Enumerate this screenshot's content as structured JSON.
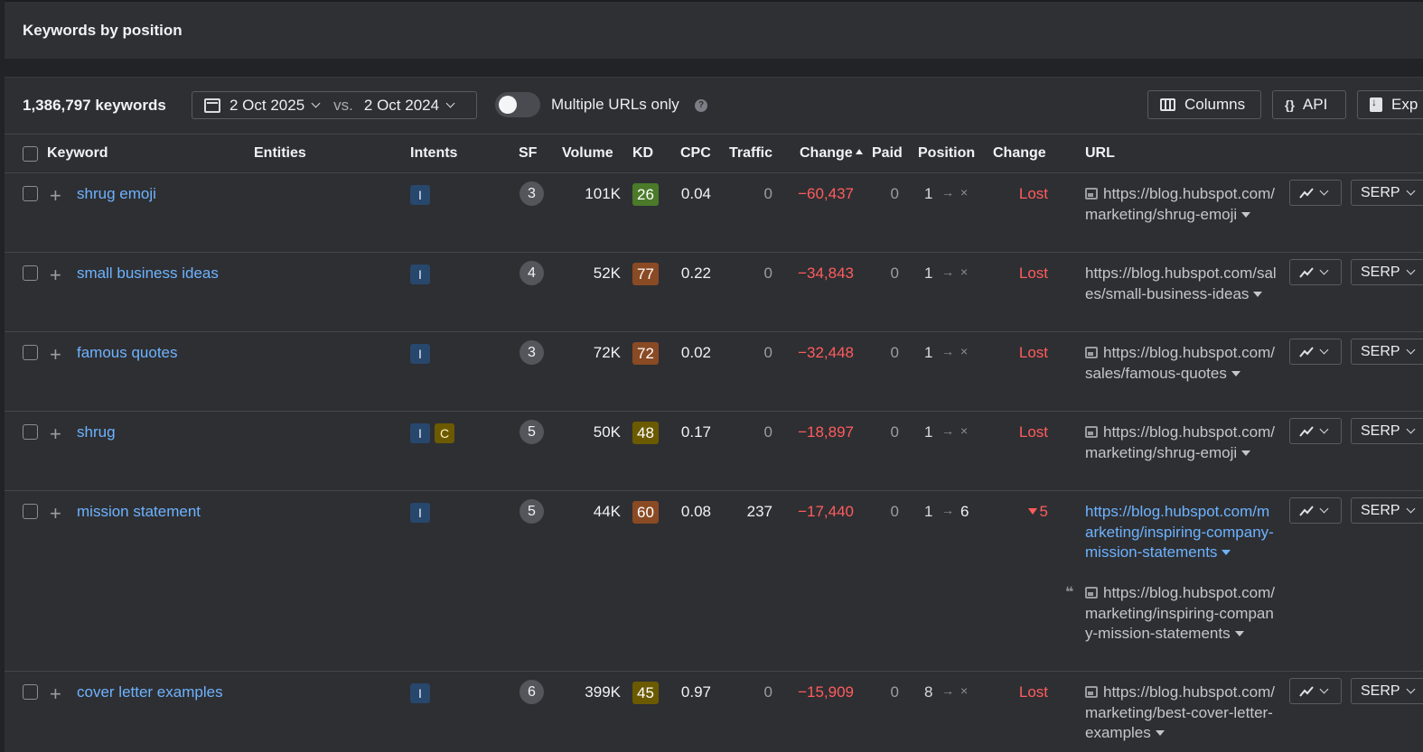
{
  "header": {
    "title": "Keywords by position"
  },
  "toolbar": {
    "keyword_count": "1,386,797 keywords",
    "date_current": "2 Oct 2025",
    "vs_label": "vs.",
    "date_compare": "2 Oct 2024",
    "toggle_label": "Multiple URLs only",
    "toggle_on": false,
    "help_glyph": "?",
    "columns_label": "Columns",
    "api_label": "API",
    "api_icon": "{}",
    "export_label": "Exp"
  },
  "columns": {
    "keyword": "Keyword",
    "entities": "Entities",
    "intents": "Intents",
    "sf": "SF",
    "volume": "Volume",
    "kd": "KD",
    "cpc": "CPC",
    "traffic": "Traffic",
    "change": "Change",
    "paid": "Paid",
    "position": "Position",
    "position_change": "Change",
    "url": "URL"
  },
  "serp_label": "SERP",
  "rows": [
    {
      "keyword": "shrug emoji",
      "intents": [
        "I"
      ],
      "sf": "3",
      "volume": "101K",
      "kd": "26",
      "kd_color": "#4a7a2a",
      "cpc": "0.04",
      "traffic": "0",
      "change": "−60,437",
      "paid": "0",
      "pos_from": "1",
      "pos_arrow": "→",
      "pos_to": "×",
      "pos_change": "Lost",
      "url": "https://blog.hubspot.com/marketing/shrug-emoji"
    },
    {
      "keyword": "small business ideas",
      "intents": [
        "I"
      ],
      "sf": "4",
      "volume": "52K",
      "kd": "77",
      "kd_color": "#8a4a24",
      "cpc": "0.22",
      "traffic": "0",
      "change": "−34,843",
      "paid": "0",
      "pos_from": "1",
      "pos_arrow": "→",
      "pos_to": "×",
      "pos_change": "Lost",
      "url": "https://blog.hubspot.com/sales/small-business-ideas"
    },
    {
      "keyword": "famous quotes",
      "intents": [
        "I"
      ],
      "sf": "3",
      "volume": "72K",
      "kd": "72",
      "kd_color": "#8a4a24",
      "cpc": "0.02",
      "traffic": "0",
      "change": "−32,448",
      "paid": "0",
      "pos_from": "1",
      "pos_arrow": "→",
      "pos_to": "×",
      "pos_change": "Lost",
      "url": "https://blog.hubspot.com/sales/famous-quotes"
    },
    {
      "keyword": "shrug",
      "intents": [
        "I",
        "C"
      ],
      "sf": "5",
      "volume": "50K",
      "kd": "48",
      "kd_color": "#6b5a00",
      "cpc": "0.17",
      "traffic": "0",
      "change": "−18,897",
      "paid": "0",
      "pos_from": "1",
      "pos_arrow": "→",
      "pos_to": "×",
      "pos_change": "Lost",
      "url": "https://blog.hubspot.com/marketing/shrug-emoji"
    },
    {
      "keyword": "mission statement",
      "intents": [
        "I"
      ],
      "sf": "5",
      "volume": "44K",
      "kd": "60",
      "kd_color": "#8a4a24",
      "cpc": "0.08",
      "traffic": "237",
      "change": "−17,440",
      "paid": "0",
      "pos_from": "1",
      "pos_arrow": "→",
      "pos_to": "6",
      "pos_change": "5",
      "url": "https://blog.hubspot.com/marketing/inspiring-company-mission-statements",
      "url2": "https://blog.hubspot.com/marketing/inspiring-company-mission-statements"
    },
    {
      "keyword": "cover letter examples",
      "intents": [
        "I"
      ],
      "sf": "6",
      "volume": "399K",
      "kd": "45",
      "kd_color": "#6b5a00",
      "cpc": "0.97",
      "traffic": "0",
      "change": "−15,909",
      "paid": "0",
      "pos_from": "8",
      "pos_arrow": "→",
      "pos_to": "×",
      "pos_change": "Lost",
      "url": "https://blog.hubspot.com/marketing/best-cover-letter-examples"
    }
  ]
}
